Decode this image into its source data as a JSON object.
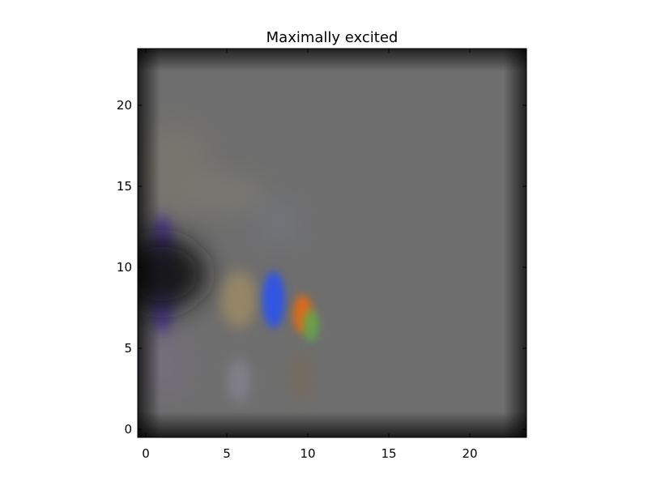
{
  "chart_data": {
    "type": "heatmap",
    "title": "Maximally excited",
    "xlabel": "",
    "ylabel": "",
    "xlim": [
      -0.5,
      23.5
    ],
    "ylim": [
      23.5,
      -0.5
    ],
    "x_ticks": [
      0,
      5,
      10,
      15,
      20
    ],
    "y_ticks": [
      0,
      5,
      10,
      15,
      20
    ],
    "x_tick_labels": [
      "0",
      "5",
      "10",
      "15",
      "20"
    ],
    "y_tick_labels": [
      "0",
      "5",
      "10",
      "15",
      "20"
    ],
    "grid": false,
    "legend": "none",
    "image_size": [
      24,
      24
    ],
    "colors": {
      "background_gray": "#6e6e6e",
      "edge_dark": "#2a2a2a",
      "dark_blob": "#141214",
      "violet_blob": "#3d2a8e",
      "blue_blob": "#2d55e8",
      "orange_blob": "#e06a18",
      "green_blob": "#62a84a",
      "tan_blob": "#a69164"
    }
  }
}
